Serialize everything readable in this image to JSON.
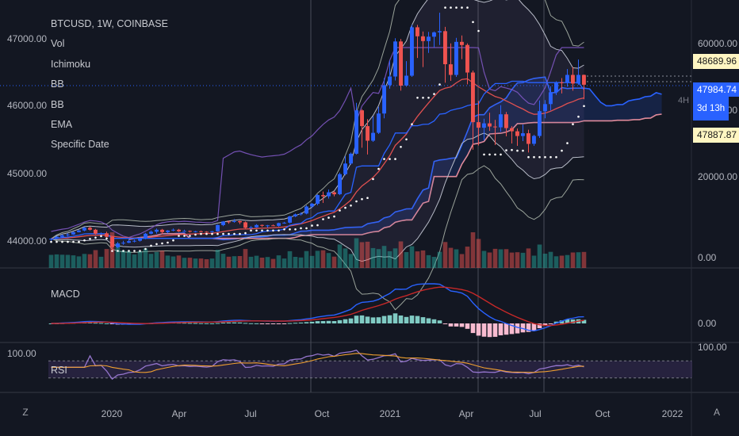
{
  "legend": {
    "symbol": "BTCUSD, 1W, COINBASE",
    "indicators": [
      "Vol",
      "Ichimoku",
      "BB",
      "BB",
      "EMA",
      "Specific Date"
    ]
  },
  "left_axis": {
    "ticks": [
      "47000.00",
      "46000.00",
      "45000.00",
      "44000.00"
    ]
  },
  "right_axis": {
    "ticks": [
      "60000.00",
      "40000.00",
      "20000.00",
      "0.00"
    ]
  },
  "price_tags": {
    "high": "48689.96",
    "last": "47984.74",
    "countdown": "3d 13h",
    "low": "47887.87"
  },
  "watermark": "4H",
  "macd": {
    "label": "MACD",
    "axis_tick": "0.00"
  },
  "rsi": {
    "label": "RSI",
    "left_tick": "100.00",
    "right_tick": "100.00"
  },
  "time_axis": {
    "labels": [
      "2020",
      "Apr",
      "Jul",
      "Oct",
      "2021",
      "Apr",
      "Jul",
      "Oct",
      "2022"
    ]
  },
  "buttons": {
    "left": "Z",
    "right": "A"
  },
  "colors": {
    "bg": "#131722",
    "up": "#2962ff",
    "down": "#ef5350",
    "grid": "#2a2e39",
    "purple": "#7e57c2",
    "macd_line": "#2962ff",
    "signal_line": "#c62828",
    "hist_up": "#80cbc4",
    "hist_down": "#f8bbd0"
  },
  "chart_data": {
    "type": "candlestick",
    "title": "BTCUSD, 1W, COINBASE",
    "price_range": [
      0,
      65000
    ],
    "x_labels": [
      "2020",
      "Apr",
      "Jul",
      "Oct",
      "2021",
      "Apr",
      "Jul",
      "Oct",
      "2022"
    ],
    "candles": [
      [
        7200,
        7600,
        6900,
        7400
      ],
      [
        7400,
        8100,
        7300,
        7900
      ],
      [
        7900,
        8500,
        7700,
        8300
      ],
      [
        8300,
        8800,
        8000,
        8500
      ],
      [
        8500,
        9200,
        8400,
        9100
      ],
      [
        9100,
        9700,
        9000,
        9500
      ],
      [
        9500,
        10400,
        9300,
        10200
      ],
      [
        10200,
        10500,
        9500,
        9700
      ],
      [
        9700,
        9900,
        8500,
        8700
      ],
      [
        8700,
        9000,
        8400,
        8800
      ],
      [
        8800,
        9200,
        7800,
        7900
      ],
      [
        7900,
        8000,
        4500,
        5300
      ],
      [
        5300,
        6600,
        5000,
        6200
      ],
      [
        6200,
        6900,
        5900,
        6400
      ],
      [
        6400,
        7300,
        6300,
        6800
      ],
      [
        6800,
        7200,
        6500,
        6900
      ],
      [
        6900,
        7800,
        6700,
        7500
      ],
      [
        7500,
        8900,
        7300,
        8700
      ],
      [
        8700,
        9500,
        8500,
        9200
      ],
      [
        9200,
        10000,
        8700,
        9700
      ],
      [
        9700,
        9900,
        8500,
        9100
      ],
      [
        9100,
        9600,
        8800,
        9500
      ],
      [
        9500,
        10000,
        9300,
        9700
      ],
      [
        9700,
        9900,
        9100,
        9300
      ],
      [
        9300,
        9700,
        9200,
        9400
      ],
      [
        9400,
        9500,
        9000,
        9200
      ],
      [
        9200,
        9400,
        9000,
        9300
      ],
      [
        9300,
        9500,
        9100,
        9200
      ],
      [
        9200,
        9300,
        9000,
        9100
      ],
      [
        9100,
        9400,
        9000,
        9300
      ],
      [
        9300,
        11000,
        9200,
        10900
      ],
      [
        10900,
        11900,
        10600,
        11800
      ],
      [
        11800,
        12000,
        11200,
        11700
      ],
      [
        11700,
        12400,
        11500,
        11900
      ],
      [
        11900,
        12000,
        11100,
        11600
      ],
      [
        11600,
        11800,
        10000,
        10200
      ],
      [
        10200,
        10600,
        9900,
        10300
      ],
      [
        10300,
        11100,
        10200,
        10900
      ],
      [
        10900,
        11000,
        10400,
        10700
      ],
      [
        10700,
        10900,
        10200,
        10800
      ],
      [
        10800,
        11000,
        10600,
        10700
      ],
      [
        10700,
        11500,
        10500,
        11400
      ],
      [
        11400,
        11700,
        11200,
        11500
      ],
      [
        11500,
        13200,
        11300,
        13100
      ],
      [
        13100,
        13800,
        12900,
        13600
      ],
      [
        13600,
        14100,
        13300,
        13800
      ],
      [
        13800,
        15900,
        13600,
        15600
      ],
      [
        15600,
        16500,
        15200,
        16300
      ],
      [
        16300,
        18700,
        15900,
        18500
      ],
      [
        18500,
        19400,
        16500,
        18200
      ],
      [
        18200,
        19900,
        17600,
        19200
      ],
      [
        19200,
        19500,
        18200,
        18700
      ],
      [
        18700,
        24200,
        18500,
        23800
      ],
      [
        23800,
        28400,
        23500,
        26500
      ],
      [
        26500,
        29300,
        26200,
        29000
      ],
      [
        29000,
        41900,
        28800,
        40000
      ],
      [
        40000,
        40300,
        30500,
        36000
      ],
      [
        36000,
        37800,
        28800,
        32300
      ],
      [
        32300,
        38500,
        32000,
        34300
      ],
      [
        34300,
        40900,
        34000,
        39200
      ],
      [
        39200,
        48200,
        38000,
        46400
      ],
      [
        46400,
        52600,
        45500,
        48600
      ],
      [
        48600,
        58300,
        47600,
        57500
      ],
      [
        57500,
        58100,
        45000,
        46300
      ],
      [
        46300,
        52500,
        46000,
        48800
      ],
      [
        48800,
        61700,
        48500,
        61100
      ],
      [
        61100,
        61700,
        53300,
        58800
      ],
      [
        58800,
        60000,
        51000,
        57600
      ],
      [
        57600,
        59900,
        54600,
        58700
      ],
      [
        58700,
        60000,
        56000,
        59800
      ],
      [
        59800,
        64800,
        56600,
        60100
      ],
      [
        60100,
        61200,
        47000,
        51700
      ],
      [
        51700,
        57000,
        47500,
        49000
      ],
      [
        49000,
        58400,
        48500,
        57400
      ],
      [
        57400,
        59000,
        53000,
        56600
      ],
      [
        56600,
        57000,
        46600,
        49600
      ],
      [
        49600,
        50100,
        30000,
        37000
      ],
      [
        37000,
        42400,
        31100,
        35600
      ],
      [
        35600,
        37900,
        32400,
        36700
      ],
      [
        36700,
        39400,
        34800,
        35900
      ],
      [
        35900,
        37600,
        31200,
        35700
      ],
      [
        35700,
        41300,
        34600,
        39000
      ],
      [
        39000,
        39600,
        33400,
        35500
      ],
      [
        35500,
        36000,
        31600,
        34700
      ],
      [
        34700,
        35400,
        31000,
        33500
      ],
      [
        33500,
        36400,
        32200,
        34200
      ],
      [
        34200,
        35100,
        29300,
        31500
      ],
      [
        31500,
        33800,
        31000,
        33500
      ],
      [
        33500,
        42500,
        33000,
        39800
      ],
      [
        39800,
        42600,
        38000,
        41600
      ],
      [
        41600,
        46100,
        40000,
        44600
      ],
      [
        44600,
        47400,
        43900,
        47100
      ],
      [
        47100,
        48200,
        44300,
        47000
      ],
      [
        47000,
        50500,
        46000,
        49000
      ],
      [
        49000,
        51000,
        45000,
        46800
      ],
      [
        46800,
        52900,
        46500,
        49000
      ],
      [
        49000,
        49100,
        42800,
        46500
      ]
    ],
    "rsi_levels": [
      30,
      70
    ],
    "volume_axis": [
      "0.00"
    ]
  }
}
